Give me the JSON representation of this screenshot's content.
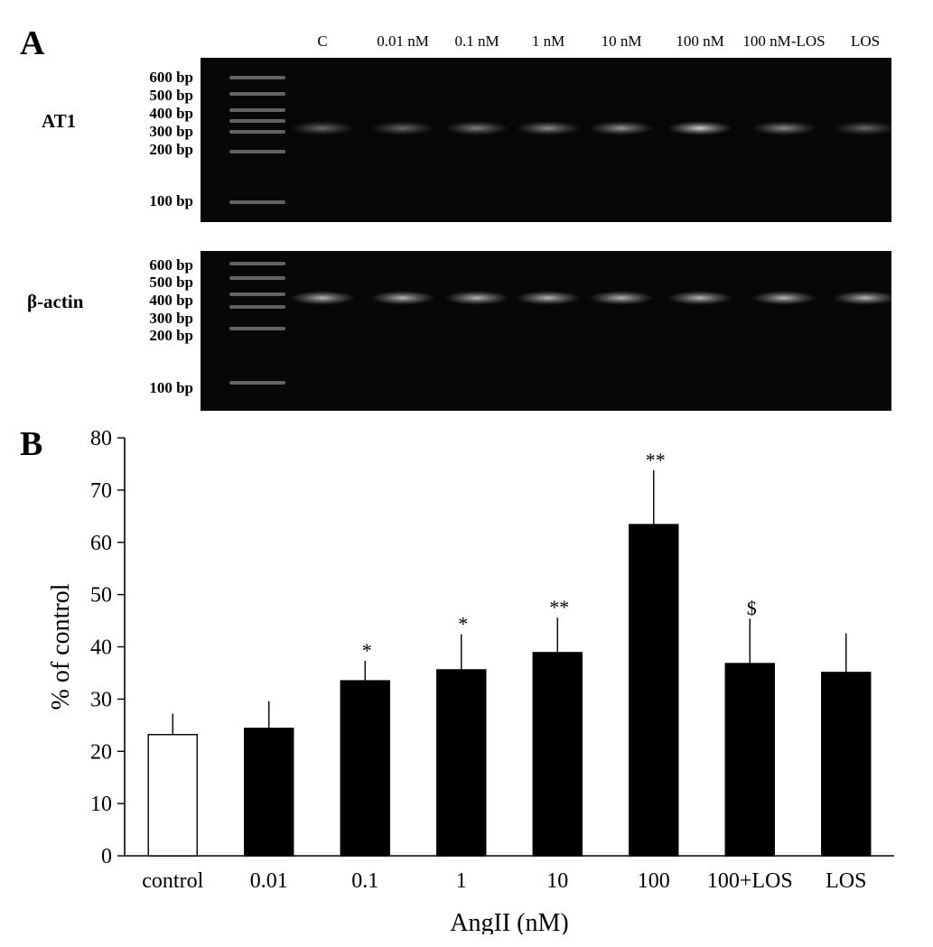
{
  "panel_a": {
    "letter": "A",
    "lane_labels": [
      "C",
      "0.01 nM",
      "0.1 nM",
      "1 nM",
      "10 nM",
      "100 nM",
      "100 nM-LOS",
      "LOS"
    ],
    "gels": [
      {
        "title": "AT1",
        "ladder": [
          "600 bp",
          "500 bp",
          "400 bp",
          "300 bp",
          "200 bp",
          "100 bp"
        ],
        "band_intensity": [
          0.45,
          0.45,
          0.55,
          0.6,
          0.65,
          0.9,
          0.6,
          0.45
        ]
      },
      {
        "title": "β-actin",
        "ladder": [
          "600 bp",
          "500 bp",
          "400 bp",
          "300 bp",
          "200 bp",
          "100 bp"
        ],
        "band_intensity": [
          0.8,
          0.8,
          0.8,
          0.8,
          0.8,
          0.8,
          0.8,
          0.8
        ]
      }
    ]
  },
  "panel_b": {
    "letter": "B"
  },
  "chart_data": {
    "type": "bar",
    "categories": [
      "control",
      "0.01",
      "0.1",
      "1",
      "10",
      "100",
      "100+LOS",
      "LOS"
    ],
    "values": [
      23.2,
      24.4,
      33.5,
      35.6,
      38.9,
      63.4,
      36.8,
      35.1
    ],
    "errors": [
      4.0,
      5.2,
      3.8,
      6.8,
      6.7,
      10.4,
      8.6,
      7.5
    ],
    "significance": [
      "",
      "",
      "*",
      "*",
      "**",
      "**",
      "$",
      ""
    ],
    "fills": [
      "#ffffff",
      "#000000",
      "#000000",
      "#000000",
      "#000000",
      "#000000",
      "#000000",
      "#000000"
    ],
    "xlabel": "AngII (nM)",
    "ylabel": "% of control",
    "ylim": [
      0,
      80
    ],
    "yticks": [
      0,
      10,
      20,
      30,
      40,
      50,
      60,
      70,
      80
    ],
    "grid": false
  }
}
